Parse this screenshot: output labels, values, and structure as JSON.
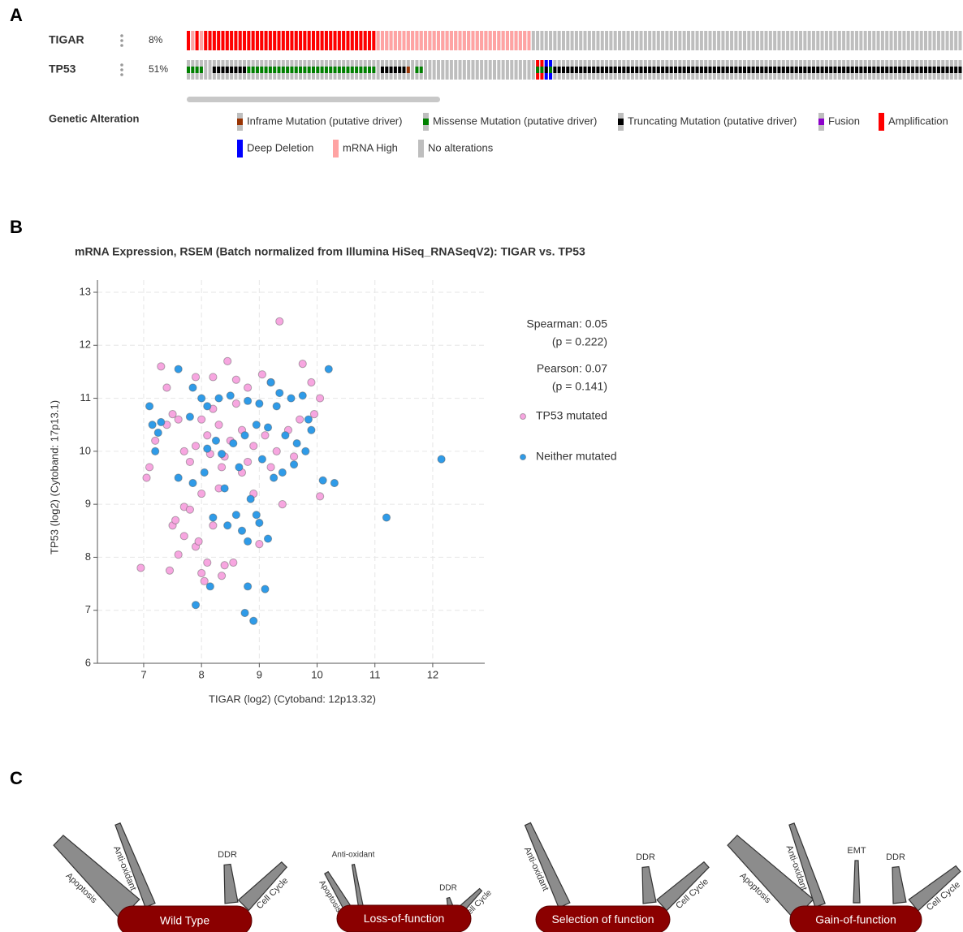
{
  "panels": [
    "A",
    "B",
    "C"
  ],
  "oncoprint": {
    "genes": [
      {
        "name": "TIGAR",
        "percent": "8%",
        "segments": [
          {
            "alterations": [
              "Amplification"
            ],
            "count": 1
          },
          {
            "alterations": [
              "mRNA High"
            ],
            "count": 1
          },
          {
            "alterations": [
              "Amplification"
            ],
            "count": 1
          },
          {
            "alterations": [
              "mRNA High"
            ],
            "count": 1
          },
          {
            "alterations": [
              "Amplification"
            ],
            "count": 40
          },
          {
            "alterations": [
              "mRNA High"
            ],
            "count": 36
          },
          {
            "alterations": [
              "No alterations"
            ],
            "count": 100
          }
        ]
      },
      {
        "name": "TP53",
        "percent": "51%",
        "segments": [
          {
            "alterations": [
              "Missense Mutation (putative driver)"
            ],
            "count": 4
          },
          {
            "alterations": [
              "No alterations"
            ],
            "count": 2
          },
          {
            "alterations": [
              "Truncating Mutation (putative driver)"
            ],
            "count": 8
          },
          {
            "alterations": [
              "Missense Mutation (putative driver)"
            ],
            "count": 30
          },
          {
            "alterations": [
              "No alterations"
            ],
            "count": 1
          },
          {
            "alterations": [
              "Truncating Mutation (putative driver)"
            ],
            "count": 6
          },
          {
            "alterations": [
              "Inframe Mutation (putative driver)"
            ],
            "count": 1
          },
          {
            "alterations": [
              "No alterations"
            ],
            "count": 1
          },
          {
            "alterations": [
              "Missense Mutation (putative driver)"
            ],
            "count": 2
          },
          {
            "alterations": [
              "No alterations"
            ],
            "count": 26
          },
          {
            "alterations": [
              "Amplification",
              "Missense Mutation (putative driver)"
            ],
            "count": 2
          },
          {
            "alterations": [
              "Deep Deletion",
              "Truncating Mutation (putative driver)"
            ],
            "count": 1
          },
          {
            "alterations": [
              "Deep Deletion",
              "Missense Mutation (putative driver)"
            ],
            "count": 1
          },
          {
            "alterations": [
              "Truncating Mutation (putative driver)"
            ],
            "count": 95
          }
        ]
      }
    ],
    "legend_title": "Genetic Alteration",
    "legend": [
      {
        "name": "Inframe Mutation (putative driver)",
        "color": "#993404",
        "kind": "mutation"
      },
      {
        "name": "Missense Mutation (putative driver)",
        "color": "#008000",
        "kind": "mutation"
      },
      {
        "name": "Truncating Mutation (putative driver)",
        "color": "#000000",
        "kind": "mutation"
      },
      {
        "name": "Fusion",
        "color": "#8b00c9",
        "kind": "mutation"
      },
      {
        "name": "Amplification",
        "color": "#ff0000",
        "kind": "cna"
      },
      {
        "name": "Deep Deletion",
        "color": "#0000ff",
        "kind": "cna"
      },
      {
        "name": "mRNA High",
        "color": "#ffa3a3",
        "kind": "cna"
      },
      {
        "name": "No alterations",
        "color": "#bebebe",
        "kind": "none"
      }
    ]
  },
  "chart_data": {
    "type": "scatter",
    "title": "mRNA Expression, RSEM (Batch normalized from Illumina HiSeq_RNASeqV2): TIGAR vs. TP53",
    "x_label": "TIGAR (log2) (Cytoband: 12p13.32)",
    "y_label": "TP53 (log2) (Cytoband: 17p13.1)",
    "xlim": [
      6.2,
      12.9
    ],
    "ylim": [
      6,
      13
    ],
    "xticks": [
      7,
      8,
      9,
      10,
      11,
      12
    ],
    "yticks": [
      6,
      7,
      8,
      9,
      10,
      11,
      12,
      13
    ],
    "grid": true,
    "annotations": [
      "Spearman: 0.05",
      "(p = 0.222)",
      "Pearson: 0.07",
      "(p = 0.141)"
    ],
    "series": [
      {
        "name": "TP53 mutated",
        "color": "#f7a6e0",
        "x": [
          7.3,
          7.4,
          7.5,
          7.4,
          7.6,
          7.2,
          7.1,
          7.05,
          6.95,
          7.45,
          7.6,
          7.7,
          7.5,
          7.55,
          7.7,
          7.8,
          7.9,
          7.95,
          8.0,
          8.05,
          8.1,
          8.2,
          8.35,
          8.4,
          8.55,
          7.9,
          8.2,
          8.45,
          8.6,
          8.8,
          9.05,
          9.2,
          9.35,
          9.75,
          9.9,
          10.05,
          9.95,
          10.05,
          9.4,
          9.0,
          8.9,
          8.7,
          8.3,
          8.0,
          7.8,
          7.9,
          8.1,
          8.3,
          8.5,
          8.7,
          8.9,
          9.1,
          9.3,
          9.5,
          9.7,
          8.2,
          8.6,
          8.0,
          8.4,
          8.8,
          9.2,
          9.6,
          7.7,
          8.35,
          8.15
        ],
        "values": [
          11.6,
          11.2,
          10.7,
          10.5,
          10.6,
          10.2,
          9.7,
          9.5,
          7.8,
          7.75,
          8.05,
          8.4,
          8.6,
          8.7,
          8.95,
          8.9,
          8.2,
          8.3,
          7.7,
          7.55,
          7.9,
          8.6,
          7.65,
          7.85,
          7.9,
          11.4,
          11.4,
          11.7,
          11.35,
          11.2,
          11.45,
          11.3,
          12.45,
          11.65,
          11.3,
          11.0,
          10.7,
          9.15,
          9.0,
          8.25,
          9.2,
          9.6,
          9.3,
          9.2,
          9.8,
          10.1,
          10.3,
          10.5,
          10.2,
          10.4,
          10.1,
          10.3,
          10.0,
          10.4,
          10.6,
          10.8,
          10.9,
          10.6,
          9.9,
          9.8,
          9.7,
          9.9,
          10.0,
          9.7,
          9.95
        ]
      },
      {
        "name": "Neither mutated",
        "color": "#2f9be8",
        "x": [
          7.1,
          7.15,
          7.2,
          7.25,
          7.3,
          7.6,
          7.85,
          8.0,
          8.1,
          8.3,
          8.5,
          8.8,
          9.0,
          9.2,
          9.35,
          9.55,
          9.75,
          10.2,
          9.85,
          9.9,
          9.8,
          9.6,
          9.4,
          10.1,
          10.3,
          11.2,
          12.15,
          9.15,
          9.0,
          8.95,
          8.7,
          8.8,
          8.6,
          8.45,
          8.2,
          8.15,
          7.9,
          8.8,
          9.1,
          8.75,
          8.9,
          7.85,
          7.6,
          8.05,
          8.35,
          8.55,
          8.75,
          8.95,
          9.15,
          9.45,
          9.65,
          8.25,
          8.65,
          9.05,
          9.25,
          8.4,
          8.85,
          9.3,
          8.1,
          7.8
        ],
        "values": [
          10.85,
          10.5,
          10.0,
          10.35,
          10.55,
          11.55,
          11.2,
          11.0,
          10.85,
          11.0,
          11.05,
          10.95,
          10.9,
          11.3,
          11.1,
          11.0,
          11.05,
          11.55,
          10.6,
          10.4,
          10.0,
          9.75,
          9.6,
          9.45,
          9.4,
          8.75,
          9.85,
          8.35,
          8.65,
          8.8,
          8.5,
          8.3,
          8.8,
          8.6,
          8.75,
          7.45,
          7.1,
          7.45,
          7.4,
          6.95,
          6.8,
          9.4,
          9.5,
          9.6,
          9.95,
          10.15,
          10.3,
          10.5,
          10.45,
          10.3,
          10.15,
          10.2,
          9.7,
          9.85,
          9.5,
          9.3,
          9.1,
          10.85,
          10.05,
          10.65
        ]
      }
    ]
  },
  "diagram": {
    "knives": [
      {
        "label": "Wild Type",
        "tools": [
          "Apoptosis",
          "Anti-oxidant",
          "DDR",
          "Cell Cycle"
        ]
      },
      {
        "label": "Loss-of-function",
        "tools": [
          "Apoptosis",
          "Anti-oxidant",
          "DDR",
          "Cell Cycle"
        ]
      },
      {
        "label": "Selection of function",
        "tools": [
          "Anti-oxidant",
          "DDR",
          "Cell Cycle"
        ]
      },
      {
        "label": "Gain-of-function",
        "tools": [
          "Apoptosis",
          "Anti-oxidant",
          "EMT",
          "DDR",
          "Cell Cycle"
        ]
      }
    ]
  }
}
